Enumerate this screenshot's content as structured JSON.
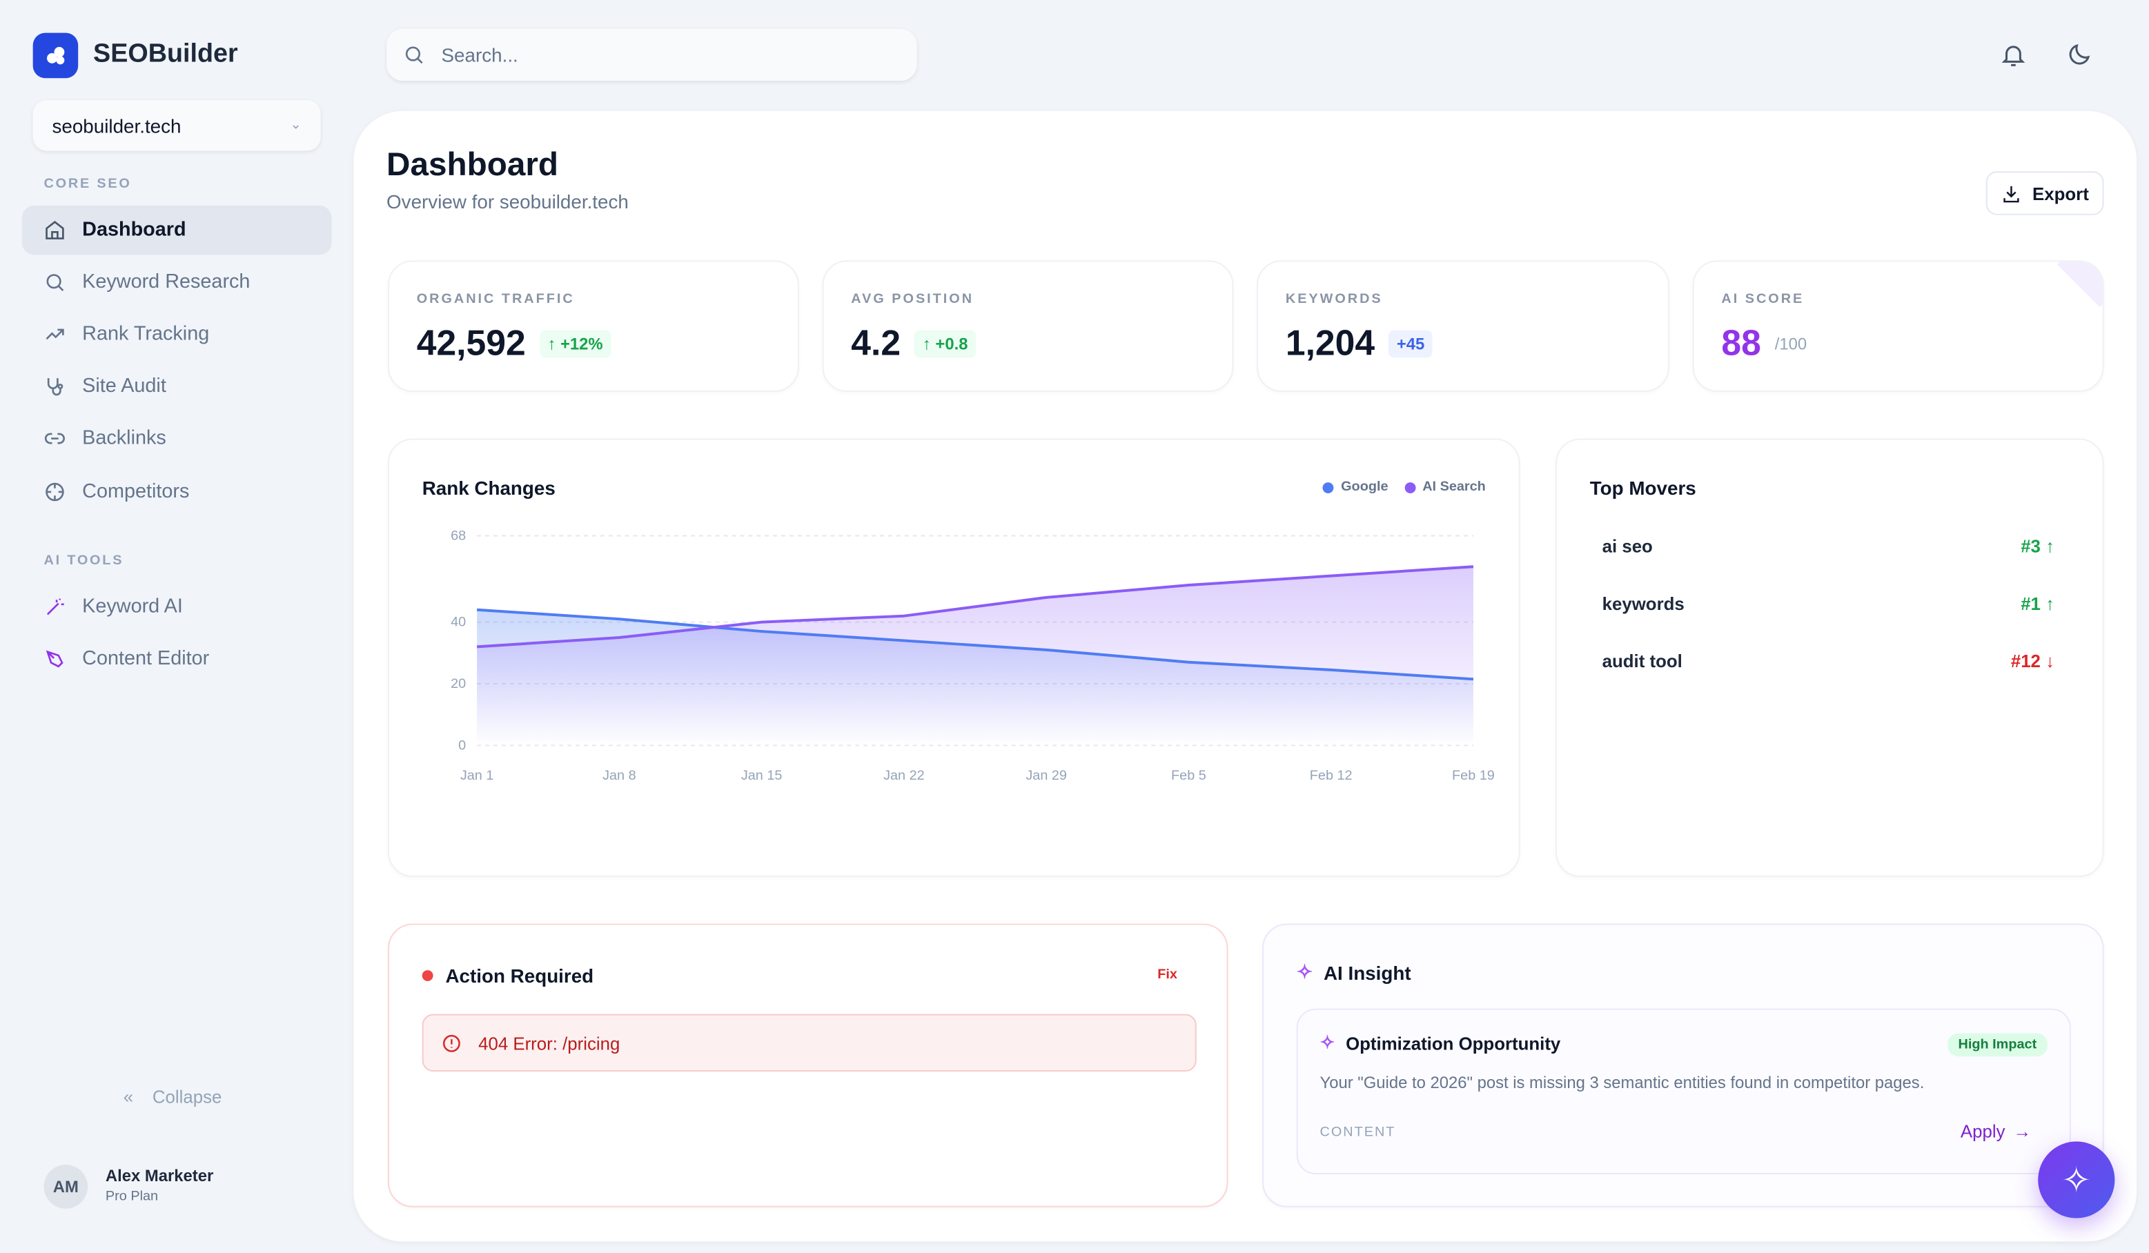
{
  "app": {
    "name": "SEOBuilder"
  },
  "sidebar": {
    "site": "seobuilder.tech",
    "core_label": "CORE SEO",
    "ai_label": "AI TOOLS",
    "core_items": [
      {
        "label": "Dashboard"
      },
      {
        "label": "Keyword Research"
      },
      {
        "label": "Rank Tracking"
      },
      {
        "label": "Site Audit"
      },
      {
        "label": "Backlinks"
      },
      {
        "label": "Competitors"
      }
    ],
    "ai_items": [
      {
        "label": "Keyword AI"
      },
      {
        "label": "Content Editor"
      }
    ],
    "collapse": "Collapse",
    "user": {
      "initials": "AM",
      "name": "Alex Marketer",
      "plan": "Pro Plan"
    }
  },
  "header": {
    "search_placeholder": "Search..."
  },
  "page": {
    "title": "Dashboard",
    "subtitle": "Overview for seobuilder.tech",
    "export": "Export"
  },
  "stats": [
    {
      "label": "ORGANIC TRAFFIC",
      "value": "42,592",
      "delta": "↑ +12%"
    },
    {
      "label": "AVG POSITION",
      "value": "4.2",
      "delta": "↑ +0.8"
    },
    {
      "label": "KEYWORDS",
      "value": "1,204",
      "delta": "+45"
    },
    {
      "label": "AI SCORE",
      "value": "88",
      "delta": "/100"
    }
  ],
  "colors": {
    "google": "#4f7cf3",
    "ai": "#8b5cf6",
    "up": "#16a34a",
    "down": "#dc2626",
    "accent": "#7c3aed"
  },
  "chart_data": {
    "type": "area",
    "title": "Rank Changes",
    "x": [
      "Jan 1",
      "Jan 8",
      "Jan 15",
      "Jan 22",
      "Jan 29",
      "Feb 5",
      "Feb 12",
      "Feb 19"
    ],
    "yticks": [
      0,
      20,
      40,
      68
    ],
    "ylim": [
      0,
      68
    ],
    "legend": "top-right",
    "series": [
      {
        "name": "Google",
        "values": [
          44,
          41,
          37,
          34,
          31,
          27,
          24.5,
          21.5
        ]
      },
      {
        "name": "AI Search",
        "values": [
          32,
          35,
          40,
          42,
          48,
          52,
          55,
          58
        ]
      }
    ]
  },
  "movers": {
    "title": "Top Movers",
    "items": [
      {
        "keyword": "ai seo",
        "rank": "#3 ↑",
        "dir": "up"
      },
      {
        "keyword": "keywords",
        "rank": "#1 ↑",
        "dir": "up"
      },
      {
        "keyword": "audit tool",
        "rank": "#12 ↓",
        "dir": "down"
      }
    ]
  },
  "action": {
    "title": "Action Required",
    "fix": "Fix",
    "error": "404 Error: /pricing"
  },
  "insight": {
    "title": "AI Insight",
    "card_title": "Optimization Opportunity",
    "badge": "High Impact",
    "text": "Your \"Guide to 2026\" post is missing 3 semantic entities found in competitor pages.",
    "category": "CONTENT",
    "apply": "Apply"
  }
}
